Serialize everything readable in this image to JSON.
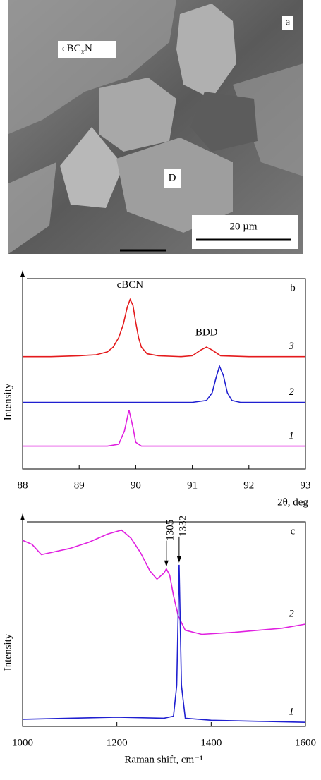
{
  "panel_a": {
    "label": "a",
    "matrix_label": [
      "cBC",
      "x",
      "N"
    ],
    "crystal_label": "D",
    "scale_bar": "20 µm"
  },
  "chart_data": [
    {
      "type": "line",
      "panel_label": "b",
      "ylabel": "Intensity",
      "xlabel": "2θ, deg",
      "xlim": [
        88,
        93
      ],
      "xticks": [
        88,
        89,
        90,
        91,
        92,
        93
      ],
      "ylim": [
        0,
        10
      ],
      "annotations": [
        {
          "text": "cBCN",
          "x": 89.9
        },
        {
          "text": "BDD",
          "x": 91.25
        }
      ],
      "series": [
        {
          "name": "3",
          "color": "#e41a1c",
          "x": [
            88,
            88.5,
            89.0,
            89.3,
            89.5,
            89.6,
            89.7,
            89.78,
            89.85,
            89.9,
            89.95,
            90.0,
            90.05,
            90.1,
            90.2,
            90.4,
            90.8,
            91.0,
            91.15,
            91.25,
            91.35,
            91.5,
            92.0,
            92.5,
            93
          ],
          "values": [
            5.9,
            5.9,
            5.95,
            6.0,
            6.15,
            6.4,
            6.9,
            7.6,
            8.5,
            8.9,
            8.6,
            7.7,
            6.9,
            6.4,
            6.05,
            5.95,
            5.9,
            5.95,
            6.25,
            6.4,
            6.25,
            5.95,
            5.9,
            5.9,
            5.9
          ]
        },
        {
          "name": "2",
          "color": "#1f1fd0",
          "x": [
            88,
            90,
            91.0,
            91.25,
            91.35,
            91.42,
            91.48,
            91.55,
            91.62,
            91.7,
            91.85,
            93
          ],
          "values": [
            3.5,
            3.5,
            3.5,
            3.6,
            4.0,
            4.8,
            5.4,
            4.9,
            4.0,
            3.6,
            3.5,
            3.5
          ]
        },
        {
          "name": "1",
          "color": "#e020e0",
          "x": [
            88,
            89.5,
            89.7,
            89.8,
            89.88,
            89.95,
            90.0,
            90.1,
            93
          ],
          "values": [
            1.2,
            1.2,
            1.3,
            2.0,
            3.1,
            2.2,
            1.4,
            1.2,
            1.2
          ]
        }
      ]
    },
    {
      "type": "line",
      "panel_label": "c",
      "ylabel": "Intensity",
      "xlabel": "Raman shift, cm⁻¹",
      "xlim": [
        1000,
        1600
      ],
      "xticks": [
        1000,
        1200,
        1400,
        1600
      ],
      "ylim": [
        0,
        10
      ],
      "annotations": [
        {
          "text": "1305",
          "x": 1305
        },
        {
          "text": "1332",
          "x": 1332
        }
      ],
      "series": [
        {
          "name": "2",
          "color": "#e020e0",
          "x": [
            1000,
            1020,
            1040,
            1060,
            1100,
            1140,
            1180,
            1210,
            1230,
            1250,
            1270,
            1285,
            1300,
            1305,
            1312,
            1320,
            1330,
            1345,
            1380,
            1450,
            1500,
            1550,
            1600
          ],
          "values": [
            9.1,
            8.9,
            8.4,
            8.5,
            8.7,
            9.0,
            9.4,
            9.6,
            9.2,
            8.5,
            7.6,
            7.2,
            7.5,
            7.7,
            7.4,
            6.4,
            5.4,
            4.7,
            4.5,
            4.6,
            4.7,
            4.8,
            5.0
          ]
        },
        {
          "name": "1",
          "color": "#1f1fd0",
          "x": [
            1000,
            1100,
            1200,
            1300,
            1320,
            1327,
            1332,
            1337,
            1345,
            1400,
            1500,
            1600
          ],
          "values": [
            0.35,
            0.4,
            0.45,
            0.4,
            0.5,
            2.0,
            7.9,
            2.0,
            0.4,
            0.3,
            0.25,
            0.2
          ]
        }
      ]
    }
  ]
}
